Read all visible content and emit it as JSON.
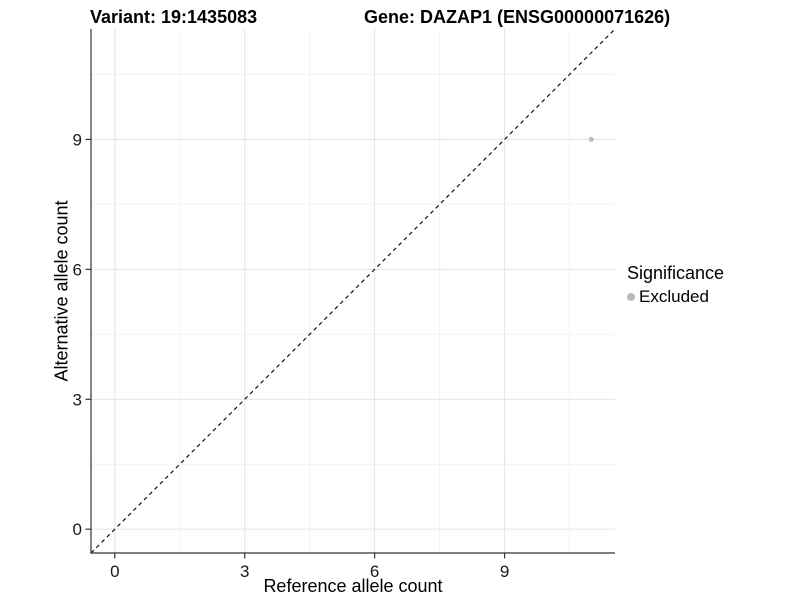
{
  "header": {
    "variant_title": "Variant: 19:1435083",
    "gene_title": "Gene: DAZAP1 (ENSG00000071626)"
  },
  "chart_data": {
    "type": "scatter",
    "title_left": "Variant: 19:1435083",
    "title_right": "Gene: DAZAP1 (ENSG00000071626)",
    "xlabel": "Reference allele count",
    "ylabel": "Alternative allele count",
    "xlim": [
      -0.55,
      11.55
    ],
    "ylim": [
      -0.55,
      11.55
    ],
    "x_major_ticks": [
      0,
      3,
      6,
      9
    ],
    "y_major_ticks": [
      0,
      3,
      6,
      9
    ],
    "x_minor_ticks": [
      1.5,
      4.5,
      7.5,
      10.5
    ],
    "y_minor_ticks": [
      1.5,
      4.5,
      7.5,
      10.5
    ],
    "grid": true,
    "reference_line": {
      "kind": "identity-diagonal",
      "style": "dashed",
      "color": "#111111"
    },
    "series": [
      {
        "name": "Excluded",
        "color": "#bdbdbd",
        "point_radius": 2.5,
        "points": [
          {
            "x": 11,
            "y": 9
          }
        ]
      }
    ],
    "legend": {
      "title": "Significance",
      "position": "right",
      "items": [
        {
          "label": "Excluded",
          "color": "#b9b9b9"
        }
      ]
    },
    "colors": {
      "grid_major": "#e4e4e4",
      "grid_minor": "#f2f2f2",
      "axis_line": "#333333",
      "tick_label": "#1a1a1a",
      "background": "#ffffff"
    }
  }
}
